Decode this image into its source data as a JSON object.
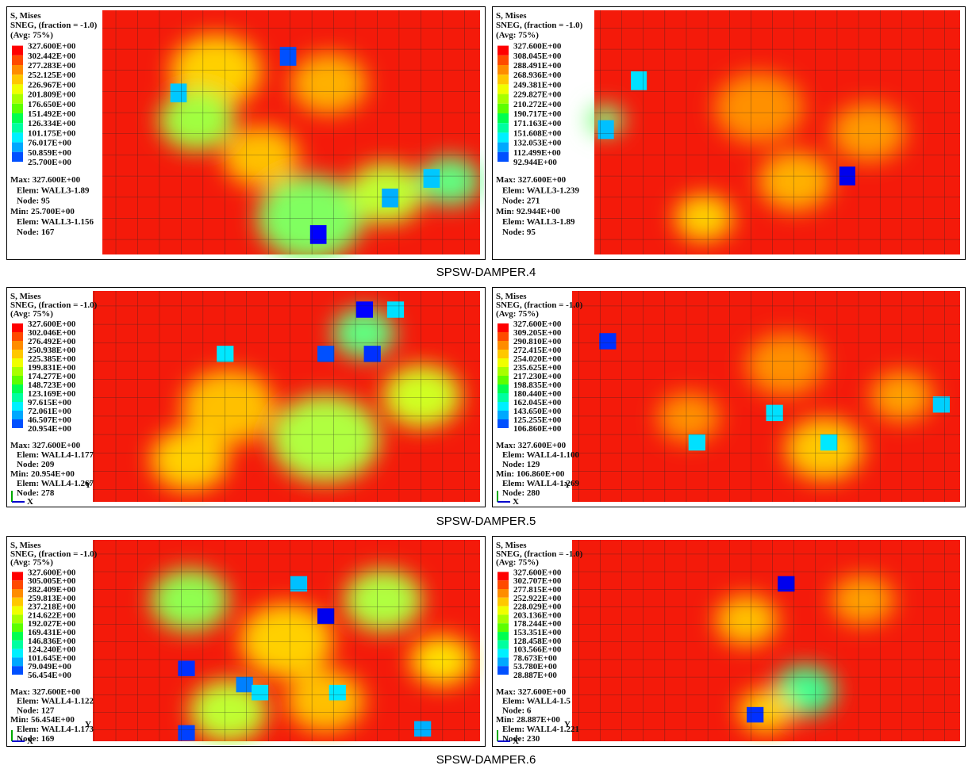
{
  "rows": [
    {
      "caption": "SPSW-DAMPER.4",
      "panels": [
        {
          "header": [
            "S, Mises",
            "SNEG, (fraction = -1.0)",
            "(Avg: 75%)"
          ],
          "legend": [
            "327.600E+00",
            "302.442E+00",
            "277.283E+00",
            "252.125E+00",
            "226.967E+00",
            "201.809E+00",
            "176.650E+00",
            "151.492E+00",
            "126.334E+00",
            "101.175E+00",
            "76.017E+00",
            "50.859E+00",
            "25.700E+00"
          ],
          "stats": [
            "Max: 327.600E+00",
            "Elem: WALL3-1.89",
            "Node: 95",
            "Min: 25.700E+00",
            "Elem: WALL3-1.156",
            "Node: 167"
          ]
        },
        {
          "header": [
            "S, Mises",
            "SNEG, (fraction = -1.0)",
            "(Avg: 75%)"
          ],
          "legend": [
            "327.600E+00",
            "308.045E+00",
            "288.491E+00",
            "268.936E+00",
            "249.381E+00",
            "229.827E+00",
            "210.272E+00",
            "190.717E+00",
            "171.163E+00",
            "151.608E+00",
            "132.053E+00",
            "112.499E+00",
            "92.944E+00"
          ],
          "stats": [
            "Max: 327.600E+00",
            "Elem: WALL3-1.239",
            "Node: 271",
            "Min: 92.944E+00",
            "Elem: WALL3-1.89",
            "Node: 95"
          ]
        }
      ]
    },
    {
      "caption": "SPSW-DAMPER.5",
      "panels": [
        {
          "header": [
            "S, Mises",
            "SNEG, (fraction = -1.0)",
            "(Avg: 75%)"
          ],
          "legend": [
            "327.600E+00",
            "302.046E+00",
            "276.492E+00",
            "250.938E+00",
            "225.385E+00",
            "199.831E+00",
            "174.277E+00",
            "148.723E+00",
            "123.169E+00",
            "97.615E+00",
            "72.061E+00",
            "46.507E+00",
            "20.954E+00"
          ],
          "stats": [
            "Max: 327.600E+00",
            "Elem: WALL4-1.177",
            "Node: 209",
            "Min: 20.954E+00",
            "Elem: WALL4-1.267",
            "Node: 278"
          ],
          "triad": [
            "Y",
            "X"
          ]
        },
        {
          "header": [
            "S, Mises",
            "SNEG, (fraction = -1.0)",
            "(Avg: 75%)"
          ],
          "legend": [
            "327.600E+00",
            "309.205E+00",
            "290.810E+00",
            "272.415E+00",
            "254.020E+00",
            "235.625E+00",
            "217.230E+00",
            "198.835E+00",
            "180.440E+00",
            "162.045E+00",
            "143.650E+00",
            "125.255E+00",
            "106.860E+00"
          ],
          "stats": [
            "Max: 327.600E+00",
            "Elem: WALL4-1.100",
            "Node: 129",
            "Min: 106.860E+00",
            "Elem: WALL4-1.269",
            "Node: 280"
          ],
          "triad": [
            "Y",
            "X"
          ]
        }
      ]
    },
    {
      "caption": "SPSW-DAMPER.6",
      "panels": [
        {
          "header": [
            "S, Mises",
            "SNEG, (fraction = -1.0)",
            "(Avg: 75%)"
          ],
          "legend": [
            "327.600E+00",
            "305.005E+00",
            "282.409E+00",
            "259.813E+00",
            "237.218E+00",
            "214.622E+00",
            "192.027E+00",
            "169.431E+00",
            "146.836E+00",
            "124.240E+00",
            "101.645E+00",
            "79.049E+00",
            "56.454E+00"
          ],
          "stats": [
            "Max: 327.600E+00",
            "Elem: WALL4-1.122",
            "Node: 127",
            "Min: 56.454E+00",
            "Elem: WALL4-1.173",
            "Node: 169"
          ],
          "triad": [
            "Y",
            "X"
          ]
        },
        {
          "header": [
            "S, Mises",
            "SNEG, (fraction = -1.0)",
            "(Avg: 75%)"
          ],
          "legend": [
            "327.600E+00",
            "302.707E+00",
            "277.815E+00",
            "252.922E+00",
            "228.029E+00",
            "203.136E+00",
            "178.244E+00",
            "153.351E+00",
            "128.458E+00",
            "103.566E+00",
            "78.673E+00",
            "53.780E+00",
            "28.887E+00"
          ],
          "stats": [
            "Max: 327.600E+00",
            "Elem: WALL4-1.5",
            "Node: 6",
            "Min: 28.887E+00",
            "Elem: WALL4-1.221",
            "Node: 230"
          ],
          "triad": [
            "Y",
            "X"
          ]
        }
      ]
    }
  ]
}
